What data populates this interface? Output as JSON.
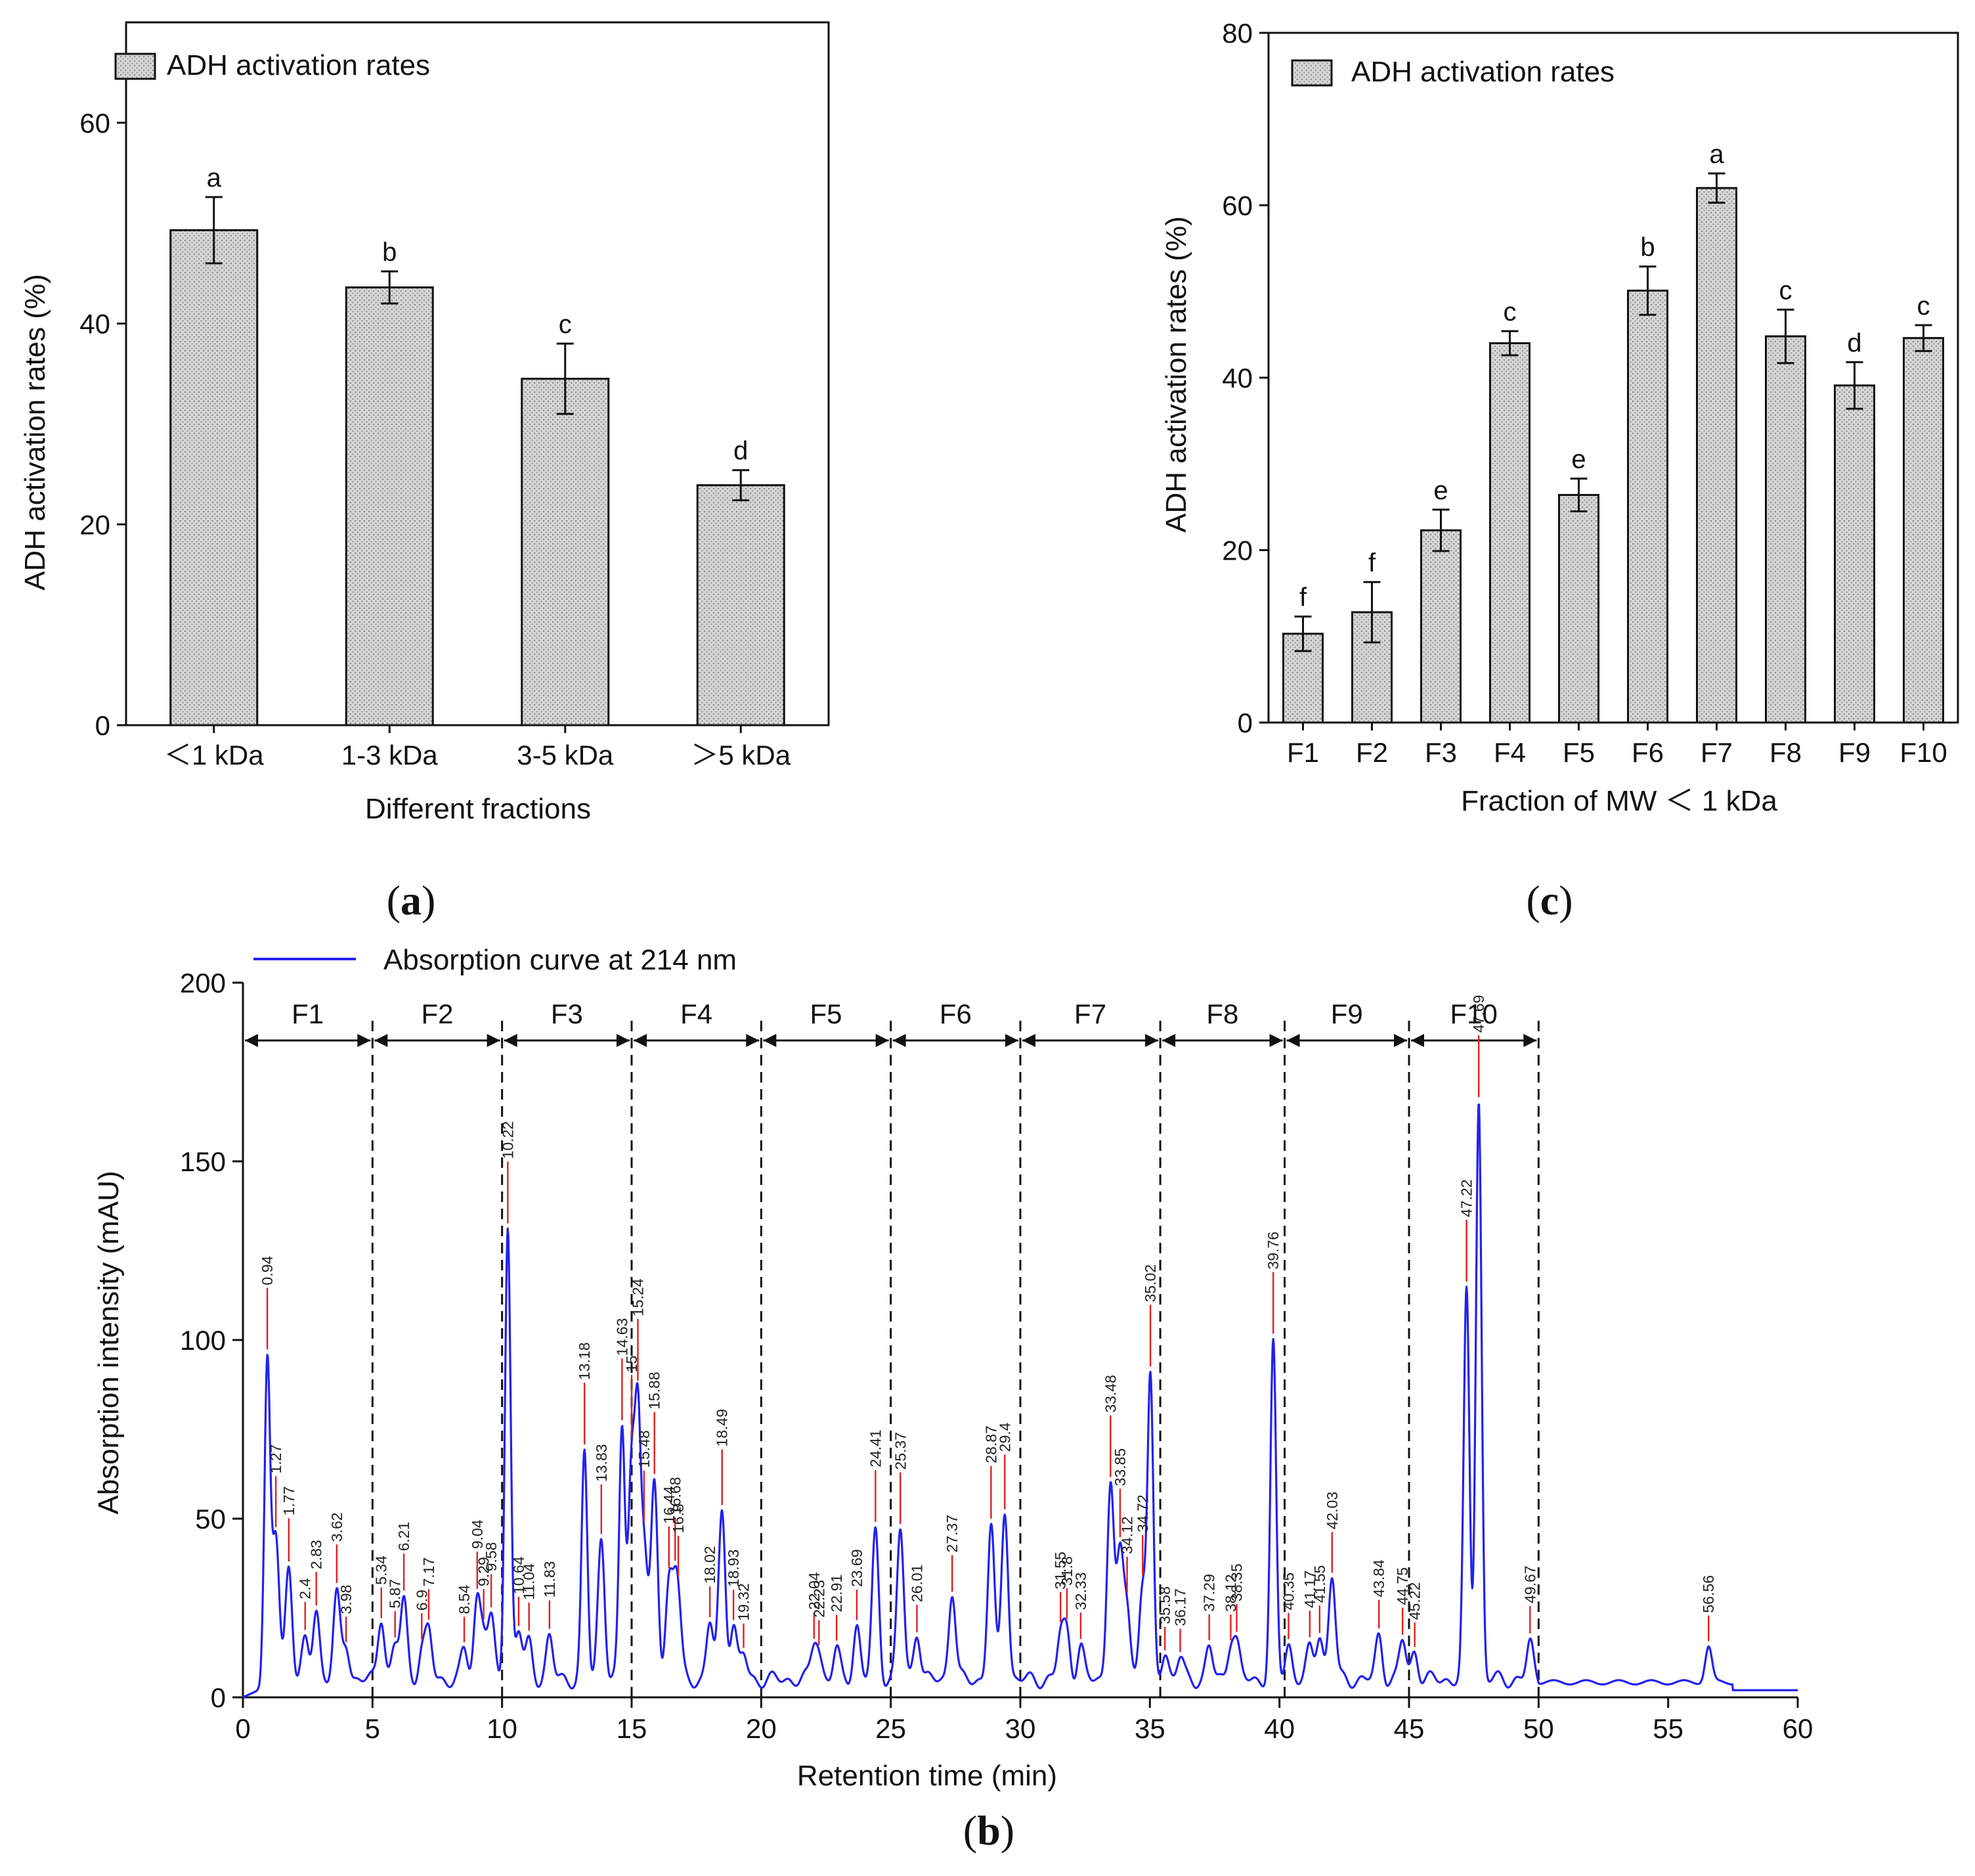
{
  "colors": {
    "bar_fill": "#cfcfcf",
    "bar_pattern_dot": "#8a8a8a",
    "axis": "#111111",
    "curve": "#2222ee",
    "peak_marker": "#e02020",
    "divider": "#111111"
  },
  "panels": {
    "a": {
      "label_open": "(",
      "label_letter": "a",
      "label_close": ")"
    },
    "b": {
      "label_open": "(",
      "label_letter": "b",
      "label_close": ")"
    },
    "c": {
      "label_open": "(",
      "label_letter": "c",
      "label_close": ")"
    }
  },
  "chart_data": [
    {
      "id": "a",
      "type": "bar",
      "legend": "ADH activation rates",
      "legend_position": "top-left",
      "xlabel": "Different fractions",
      "ylabel": "ADH activation rates (%)",
      "ylim": [
        0,
        70
      ],
      "yticks": [
        0,
        20,
        40,
        60
      ],
      "categories": [
        "<1 kDa",
        "1-3 kDa",
        "3-5 kDa",
        ">5 kDa"
      ],
      "category_labels": [
        "＜1 kDa",
        "1-3 kDa",
        "3-5 kDa",
        "＞5 kDa"
      ],
      "values": [
        49.3,
        43.6,
        34.5,
        23.9
      ],
      "errors": [
        3.3,
        1.6,
        3.5,
        1.5
      ],
      "significance": [
        "a",
        "b",
        "c",
        "d"
      ],
      "grid": false
    },
    {
      "id": "c",
      "type": "bar",
      "legend": "ADH activation rates",
      "legend_position": "top-left",
      "xlabel": "Fraction of MW ＜ 1 kDa",
      "ylabel": "ADH activation rates (%)",
      "ylim": [
        0,
        80
      ],
      "yticks": [
        0,
        20,
        40,
        60,
        80
      ],
      "categories": [
        "F1",
        "F2",
        "F3",
        "F4",
        "F5",
        "F6",
        "F7",
        "F8",
        "F9",
        "F10"
      ],
      "values": [
        10.3,
        12.8,
        22.3,
        44.0,
        26.4,
        50.1,
        62.0,
        44.8,
        39.1,
        44.6
      ],
      "errors": [
        2.0,
        3.5,
        2.4,
        1.4,
        1.9,
        2.8,
        1.7,
        3.1,
        2.7,
        1.5
      ],
      "significance": [
        "f",
        "f",
        "e",
        "c",
        "e",
        "b",
        "a",
        "c",
        "d",
        "c"
      ],
      "grid": false
    },
    {
      "id": "b",
      "type": "line",
      "legend": "Absorption curve at 214 nm",
      "legend_position": "top-left",
      "xlabel": "Retention time (min)",
      "ylabel": "Absorption intensity (mAU)",
      "xlim": [
        0,
        60
      ],
      "ylim": [
        0,
        200
      ],
      "xticks": [
        0,
        5,
        10,
        15,
        20,
        25,
        30,
        35,
        40,
        45,
        50,
        55,
        60
      ],
      "yticks": [
        0,
        50,
        100,
        150,
        200
      ],
      "baseline": 2,
      "fractions": [
        {
          "name": "F1",
          "start": 0,
          "end": 5
        },
        {
          "name": "F2",
          "start": 5,
          "end": 10
        },
        {
          "name": "F3",
          "start": 10,
          "end": 15
        },
        {
          "name": "F4",
          "start": 15,
          "end": 20
        },
        {
          "name": "F5",
          "start": 20,
          "end": 25
        },
        {
          "name": "F6",
          "start": 25,
          "end": 30
        },
        {
          "name": "F7",
          "start": 30,
          "end": 35.4
        },
        {
          "name": "F8",
          "start": 35.4,
          "end": 40.2
        },
        {
          "name": "F9",
          "start": 40.2,
          "end": 45
        },
        {
          "name": "F10",
          "start": 45,
          "end": 50
        }
      ],
      "peaks": [
        {
          "rt": 0.94,
          "label": "0.94",
          "h": 88
        },
        {
          "rt": 1.27,
          "label": "1.27",
          "h": 40
        },
        {
          "rt": 1.77,
          "label": "1.77",
          "h": 32
        },
        {
          "rt": 2.4,
          "label": "2.4",
          "h": 10
        },
        {
          "rt": 2.83,
          "label": "2.83",
          "h": 20
        },
        {
          "rt": 3.62,
          "label": "3.62",
          "h": 23
        },
        {
          "rt": 3.98,
          "label": "3.98",
          "h": 10
        },
        {
          "rt": 5.34,
          "label": "5.34",
          "h": 18
        },
        {
          "rt": 5.87,
          "label": "5.87",
          "h": 9
        },
        {
          "rt": 6.21,
          "label": "6.21",
          "h": 22
        },
        {
          "rt": 6.9,
          "label": "6.9",
          "h": 8
        },
        {
          "rt": 7.17,
          "label": "7.17",
          "h": 13
        },
        {
          "rt": 8.54,
          "label": "8.54",
          "h": 8
        },
        {
          "rt": 9.04,
          "label": "9.04",
          "h": 22
        },
        {
          "rt": 9.29,
          "label": "9.29",
          "h": 12
        },
        {
          "rt": 9.58,
          "label": "9.58",
          "h": 16
        },
        {
          "rt": 10.22,
          "label": "10.22",
          "h": 127
        },
        {
          "rt": 10.64,
          "label": "10.64",
          "h": 14
        },
        {
          "rt": 11.04,
          "label": "11.04",
          "h": 10
        },
        {
          "rt": 11.83,
          "label": "11.83",
          "h": 12
        },
        {
          "rt": 13.18,
          "label": "13.18",
          "h": 63
        },
        {
          "rt": 13.83,
          "label": "13.83",
          "h": 40
        },
        {
          "rt": 14.63,
          "label": "14.63",
          "h": 70
        },
        {
          "rt": 15,
          "label": "15",
          "h": 60
        },
        {
          "rt": 15.24,
          "label": "15.24",
          "h": 66
        },
        {
          "rt": 15.48,
          "label": "15.48",
          "h": 36
        },
        {
          "rt": 15.88,
          "label": "15.88",
          "h": 55
        },
        {
          "rt": 16.44,
          "label": "16.44",
          "h": 26
        },
        {
          "rt": 16.68,
          "label": "16.68",
          "h": 18
        },
        {
          "rt": 16.8,
          "label": "16.8",
          "h": 15
        },
        {
          "rt": 18.02,
          "label": "18.02",
          "h": 16
        },
        {
          "rt": 18.49,
          "label": "18.49",
          "h": 47
        },
        {
          "rt": 18.93,
          "label": "18.93",
          "h": 15
        },
        {
          "rt": 19.32,
          "label": "19.32",
          "h": 7
        },
        {
          "rt": 22.04,
          "label": "22.04",
          "h": 9
        },
        {
          "rt": 22.23,
          "label": "22.23",
          "h": 6
        },
        {
          "rt": 22.91,
          "label": "22.91",
          "h": 8
        },
        {
          "rt": 23.69,
          "label": "23.69",
          "h": 15
        },
        {
          "rt": 24.41,
          "label": "24.41",
          "h": 41
        },
        {
          "rt": 25.37,
          "label": "25.37",
          "h": 42
        },
        {
          "rt": 26.01,
          "label": "26.01",
          "h": 14
        },
        {
          "rt": 27.37,
          "label": "27.37",
          "h": 25
        },
        {
          "rt": 28.87,
          "label": "28.87",
          "h": 43
        },
        {
          "rt": 29.4,
          "label": "29.4",
          "h": 48
        },
        {
          "rt": 31.55,
          "label": "31.55",
          "h": 12
        },
        {
          "rt": 31.8,
          "label": "31.8",
          "h": 13
        },
        {
          "rt": 32.33,
          "label": "32.33",
          "h": 9
        },
        {
          "rt": 33.48,
          "label": "33.48",
          "h": 56
        },
        {
          "rt": 33.85,
          "label": "33.85",
          "h": 33
        },
        {
          "rt": 34.12,
          "label": "34.12",
          "h": 20
        },
        {
          "rt": 34.72,
          "label": "34.72",
          "h": 27
        },
        {
          "rt": 35.02,
          "label": "35.02",
          "h": 82
        },
        {
          "rt": 35.58,
          "label": "35.58",
          "h": 8
        },
        {
          "rt": 36.17,
          "label": "36.17",
          "h": 6
        },
        {
          "rt": 37.29,
          "label": "37.29",
          "h": 9
        },
        {
          "rt": 38.12,
          "label": "38.12",
          "h": 10
        },
        {
          "rt": 38.35,
          "label": "38.35",
          "h": 9
        },
        {
          "rt": 39.76,
          "label": "39.76",
          "h": 93
        },
        {
          "rt": 40.35,
          "label": "40.35",
          "h": 10
        },
        {
          "rt": 41.17,
          "label": "41.17",
          "h": 8
        },
        {
          "rt": 41.55,
          "label": "41.55",
          "h": 13
        },
        {
          "rt": 42.03,
          "label": "42.03",
          "h": 29
        },
        {
          "rt": 43.84,
          "label": "43.84",
          "h": 12
        },
        {
          "rt": 44.75,
          "label": "44.75",
          "h": 11
        },
        {
          "rt": 45.22,
          "label": "45.22",
          "h": 8
        },
        {
          "rt": 47.22,
          "label": "47.22",
          "h": 108
        },
        {
          "rt": 47.69,
          "label": "47.69",
          "h": 162
        },
        {
          "rt": 49.67,
          "label": "49.67",
          "h": 10
        },
        {
          "rt": 56.56,
          "label": "56.56",
          "h": 10
        }
      ]
    }
  ]
}
